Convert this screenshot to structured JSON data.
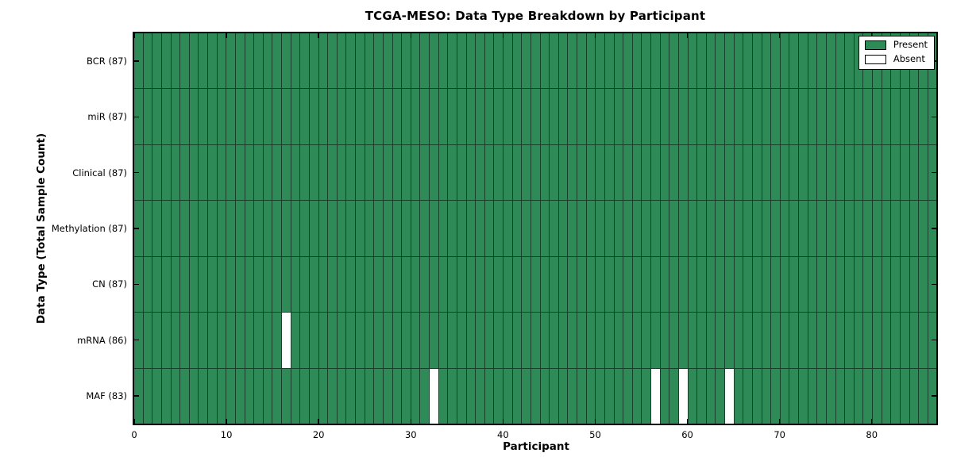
{
  "chart_data": {
    "type": "heatmap",
    "title": "TCGA-MESO: Data Type Breakdown by Participant",
    "xlabel": "Participant",
    "ylabel": "Data Type (Total Sample Count)",
    "x_range": [
      0,
      87
    ],
    "x_ticks": [
      0,
      10,
      20,
      30,
      40,
      50,
      60,
      70,
      80
    ],
    "n_participants": 87,
    "rows": [
      {
        "label": "BCR (87)",
        "total": 87,
        "absent_participants": []
      },
      {
        "label": "miR (87)",
        "total": 87,
        "absent_participants": []
      },
      {
        "label": "Clinical (87)",
        "total": 87,
        "absent_participants": []
      },
      {
        "label": "Methylation (87)",
        "total": 87,
        "absent_participants": []
      },
      {
        "label": "CN (87)",
        "total": 87,
        "absent_participants": []
      },
      {
        "label": "mRNA (86)",
        "total": 86,
        "absent_participants": [
          16
        ]
      },
      {
        "label": "MAF (83)",
        "total": 83,
        "absent_participants": [
          32,
          56,
          59,
          64
        ]
      }
    ],
    "legend": {
      "position": "upper right",
      "entries": [
        {
          "label": "Present",
          "color": "#2e8b57"
        },
        {
          "label": "Absent",
          "color": "#ffffff"
        }
      ]
    },
    "colors": {
      "present": "#2e8b57",
      "absent": "#ffffff",
      "cell_border": "#16402a",
      "axis": "#000000",
      "background": "#ffffff"
    },
    "grid": "cell-borders",
    "legend_visible": true
  }
}
